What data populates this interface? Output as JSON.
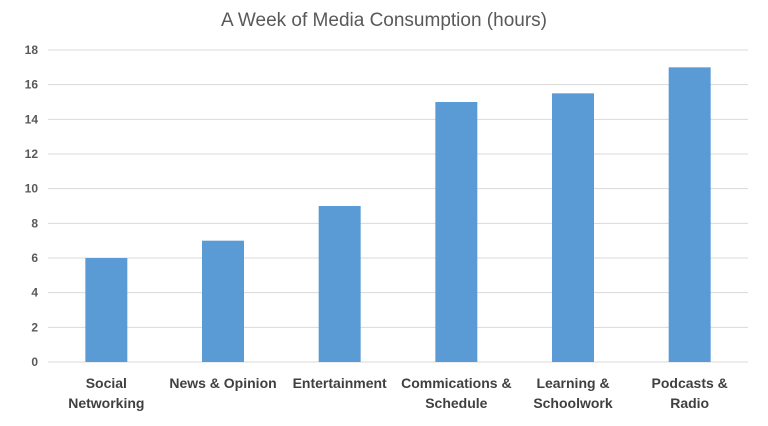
{
  "chart_data": {
    "type": "bar",
    "title": "A Week of Media Consumption (hours)",
    "xlabel": "",
    "ylabel": "",
    "categories": [
      [
        "Social",
        "Networking"
      ],
      [
        "News & Opinion"
      ],
      [
        "Entertainment"
      ],
      [
        "Commications &",
        "Schedule"
      ],
      [
        "Learning &",
        "Schoolwork"
      ],
      [
        "Podcasts &",
        "Radio"
      ]
    ],
    "values": [
      6,
      7,
      9,
      15,
      15.5,
      17
    ],
    "ylim": [
      0,
      18
    ],
    "yticks": [
      0,
      2,
      4,
      6,
      8,
      10,
      12,
      14,
      16,
      18
    ],
    "grid": true,
    "bar_color": "#5b9bd5",
    "grid_color": "#d9d9d9"
  }
}
